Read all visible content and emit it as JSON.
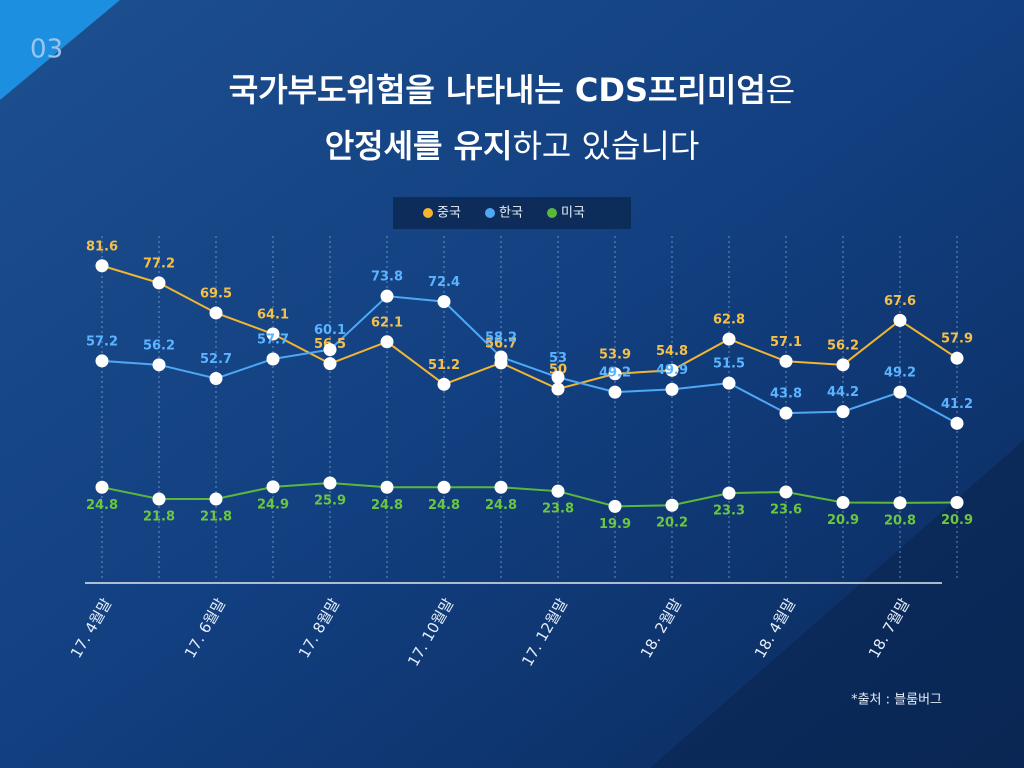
{
  "page_number": "03",
  "source": "*출처 : 블룸버그",
  "chart_data": {
    "type": "line",
    "title_lines": [
      [
        "국가부도위험을 나타내는 CDS프리미엄",
        "은"
      ],
      [
        "안정세를 유지",
        "하고 있습니다"
      ]
    ],
    "categories": [
      "17. 4월말",
      null,
      "17. 6월말",
      null,
      "17. 8월말",
      null,
      "17. 10월말",
      null,
      "17. 12월말",
      null,
      "18. 2월말",
      null,
      "18. 4월말",
      null,
      "18. 7월말",
      null
    ],
    "series": [
      {
        "name": "중국",
        "color": "#f2b630",
        "values": [
          81.6,
          77.2,
          69.5,
          64.1,
          56.5,
          62.1,
          51.2,
          56.7,
          50,
          53.9,
          54.8,
          62.8,
          57.1,
          56.2,
          67.6,
          57.9
        ]
      },
      {
        "name": "한국",
        "color": "#4ea8f5",
        "values": [
          57.2,
          56.2,
          52.7,
          57.7,
          60.1,
          73.8,
          72.4,
          58.2,
          53,
          49.2,
          49.9,
          51.5,
          43.8,
          44.2,
          49.2,
          41.2
        ]
      },
      {
        "name": "미국",
        "color": "#5cb83a",
        "values": [
          24.8,
          21.8,
          21.8,
          24.9,
          25.9,
          24.8,
          24.8,
          24.8,
          23.8,
          19.9,
          20.2,
          23.3,
          23.6,
          20.9,
          20.8,
          20.9
        ]
      }
    ],
    "ylim": [
      0,
      90
    ],
    "legend": "top"
  }
}
